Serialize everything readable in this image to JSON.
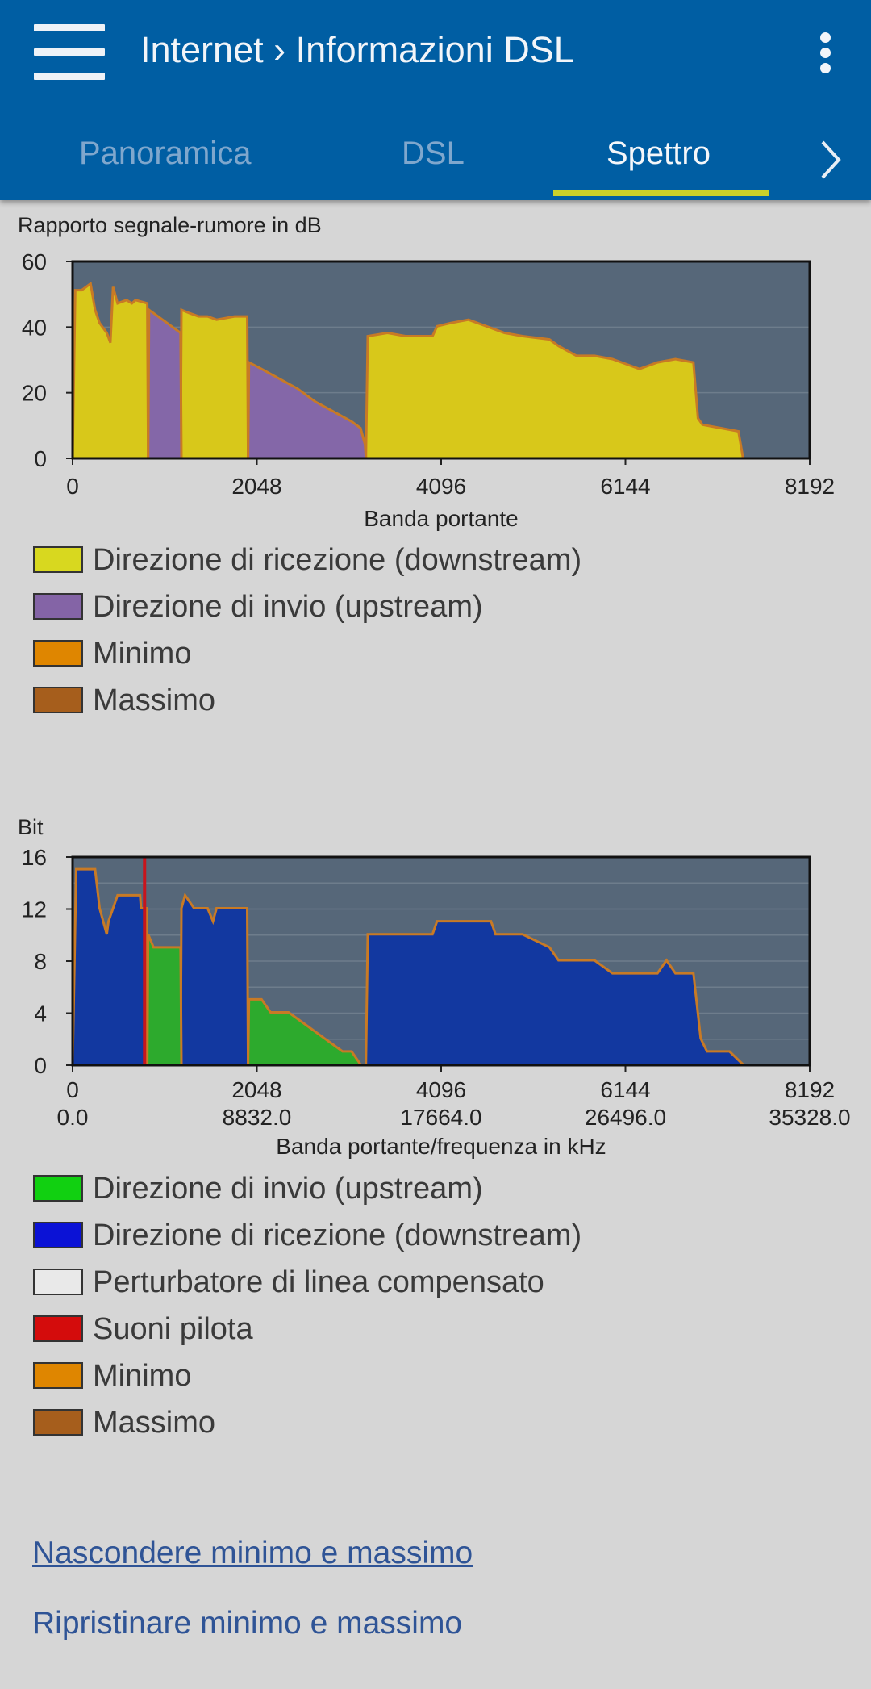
{
  "header": {
    "title": "Internet › Informazioni DSL",
    "menu_icon": "hamburger-menu-icon",
    "more_icon": "more-vertical-icon",
    "tabs": [
      {
        "label": "Panoramica",
        "active": false
      },
      {
        "label": "DSL",
        "active": false
      },
      {
        "label": "Spettro",
        "active": true
      }
    ],
    "next_icon": "chevron-right-icon",
    "accent_color": "#cbd02a",
    "background_color": "#005ea3"
  },
  "chart_data": [
    {
      "type": "area",
      "title": "Rapporto segnale-rumore in dB",
      "xlabel": "Banda portante",
      "ylabel": "",
      "xlim": [
        0,
        8192
      ],
      "ylim": [
        0,
        60
      ],
      "x_ticks": [
        "0",
        "2048",
        "4096",
        "6144",
        "8192"
      ],
      "y_ticks": [
        "0",
        "20",
        "40",
        "60"
      ],
      "grid": true,
      "series": [
        {
          "name": "Direzione di ricezione (downstream)",
          "color": "#d8c81a",
          "segments": [
            [
              [
                0,
                0
              ],
              [
                30,
                51
              ],
              [
                100,
                51
              ],
              [
                200,
                53
              ],
              [
                250,
                45
              ],
              [
                300,
                41
              ],
              [
                380,
                38
              ],
              [
                420,
                35
              ],
              [
                450,
                52
              ],
              [
                500,
                47
              ],
              [
                600,
                48
              ],
              [
                660,
                47
              ],
              [
                700,
                48
              ],
              [
                830,
                47
              ],
              [
                840,
                0
              ]
            ],
            [
              [
                1200,
                0
              ],
              [
                1210,
                45
              ],
              [
                1300,
                44
              ],
              [
                1400,
                43
              ],
              [
                1500,
                43
              ],
              [
                1600,
                42
              ],
              [
                1800,
                43
              ],
              [
                1940,
                43
              ],
              [
                1950,
                0
              ]
            ],
            [
              [
                3260,
                0
              ],
              [
                3280,
                37
              ],
              [
                3500,
                38
              ],
              [
                3700,
                37
              ],
              [
                4000,
                37
              ],
              [
                4050,
                40
              ],
              [
                4200,
                41
              ],
              [
                4400,
                42
              ],
              [
                4600,
                40
              ],
              [
                4800,
                38
              ],
              [
                5000,
                37
              ],
              [
                5300,
                36
              ],
              [
                5400,
                34
              ],
              [
                5600,
                31
              ],
              [
                5800,
                31
              ],
              [
                6000,
                30
              ],
              [
                6200,
                28
              ],
              [
                6300,
                27
              ],
              [
                6400,
                28
              ],
              [
                6500,
                29
              ],
              [
                6700,
                30
              ],
              [
                6900,
                29
              ],
              [
                6950,
                12
              ],
              [
                7000,
                10
              ],
              [
                7200,
                9
              ],
              [
                7400,
                8
              ],
              [
                7450,
                0
              ]
            ]
          ]
        },
        {
          "name": "Direzione di invio (upstream)",
          "color": "#8467a8",
          "segments": [
            [
              [
                840,
                0
              ],
              [
                850,
                45
              ],
              [
                1000,
                42
              ],
              [
                1100,
                40
              ],
              [
                1200,
                38
              ],
              [
                1210,
                0
              ]
            ],
            [
              [
                1950,
                0
              ],
              [
                1960,
                29
              ],
              [
                2100,
                27
              ],
              [
                2300,
                24
              ],
              [
                2500,
                21
              ],
              [
                2700,
                17
              ],
              [
                2900,
                14
              ],
              [
                3100,
                11
              ],
              [
                3200,
                9
              ],
              [
                3250,
                4
              ],
              [
                3260,
                0
              ]
            ]
          ]
        }
      ],
      "legend": [
        {
          "label": "Direzione di ricezione (downstream)",
          "color": "#d8d81f",
          "wrap": true
        },
        {
          "label": "Direzione di invio (upstream)",
          "color": "#8464a6",
          "wrap": false
        },
        {
          "label": "Minimo",
          "color": "#df8600",
          "wrap": false
        },
        {
          "label": "Massimo",
          "color": "#a65e1c",
          "wrap": false
        }
      ]
    },
    {
      "type": "area",
      "title": "Bit",
      "xlabel": "Banda portante/frequenza in kHz",
      "ylabel": "",
      "xlim": [
        0,
        8192
      ],
      "ylim": [
        0,
        16
      ],
      "x_ticks": [
        "0",
        "2048",
        "4096",
        "6144",
        "8192"
      ],
      "x_ticks_secondary": [
        "0.0",
        "8832.0",
        "17664.0",
        "26496.0",
        "35328.0"
      ],
      "y_ticks": [
        "0",
        "4",
        "8",
        "12",
        "16"
      ],
      "grid": true,
      "pilot_tone": 800,
      "series": [
        {
          "name": "Direzione di ricezione (downstream)",
          "color": "#1238a0",
          "segments": [
            [
              [
                0,
                0
              ],
              [
                40,
                15
              ],
              [
                250,
                15
              ],
              [
                300,
                12
              ],
              [
                380,
                10
              ],
              [
                400,
                11
              ],
              [
                500,
                13
              ],
              [
                750,
                13
              ],
              [
                760,
                12
              ],
              [
                820,
                12
              ],
              [
                830,
                0
              ]
            ],
            [
              [
                1200,
                0
              ],
              [
                1210,
                12
              ],
              [
                1250,
                13
              ],
              [
                1350,
                12
              ],
              [
                1500,
                12
              ],
              [
                1560,
                11
              ],
              [
                1600,
                12
              ],
              [
                1940,
                12
              ],
              [
                1950,
                0
              ]
            ],
            [
              [
                3260,
                0
              ],
              [
                3280,
                10
              ],
              [
                3400,
                10
              ],
              [
                3700,
                10
              ],
              [
                4000,
                10
              ],
              [
                4050,
                11
              ],
              [
                4200,
                11
              ],
              [
                4650,
                11
              ],
              [
                4700,
                10
              ],
              [
                5000,
                10
              ],
              [
                5300,
                9
              ],
              [
                5400,
                8
              ],
              [
                5800,
                8
              ],
              [
                6000,
                7
              ],
              [
                6500,
                7
              ],
              [
                6600,
                8
              ],
              [
                6700,
                7
              ],
              [
                6900,
                7
              ],
              [
                6980,
                2
              ],
              [
                7050,
                1
              ],
              [
                7300,
                1
              ],
              [
                7450,
                0
              ]
            ]
          ]
        },
        {
          "name": "Direzione di invio (upstream)",
          "color": "#2daa2d",
          "segments": [
            [
              [
                830,
                0
              ],
              [
                840,
                10
              ],
              [
                900,
                9
              ],
              [
                1050,
                9
              ],
              [
                1100,
                9
              ],
              [
                1200,
                9
              ],
              [
                1210,
                0
              ]
            ],
            [
              [
                1950,
                0
              ],
              [
                1960,
                5
              ],
              [
                2100,
                5
              ],
              [
                2200,
                4
              ],
              [
                2400,
                4
              ],
              [
                2600,
                3
              ],
              [
                2800,
                2
              ],
              [
                3000,
                1
              ],
              [
                3100,
                1
              ],
              [
                3200,
                0
              ]
            ]
          ]
        }
      ],
      "legend": [
        {
          "label": "Direzione di invio (upstream)",
          "color": "#11d011",
          "wrap": false
        },
        {
          "label": "Direzione di ricezione (downstream)",
          "color": "#0b12d6",
          "wrap": true
        },
        {
          "label": "Perturbatore di linea compensato",
          "color": "#e9e9e9",
          "wrap": false
        },
        {
          "label": "Suoni pilota",
          "color": "#d40c0c",
          "wrap": false
        },
        {
          "label": "Minimo",
          "color": "#df8600",
          "wrap": false
        },
        {
          "label": "Massimo",
          "color": "#a65e1c",
          "wrap": false
        }
      ]
    }
  ],
  "links": {
    "hide_minmax": "Nascondere minimo e massimo",
    "reset_minmax": "Ripristinare minimo e massimo"
  }
}
